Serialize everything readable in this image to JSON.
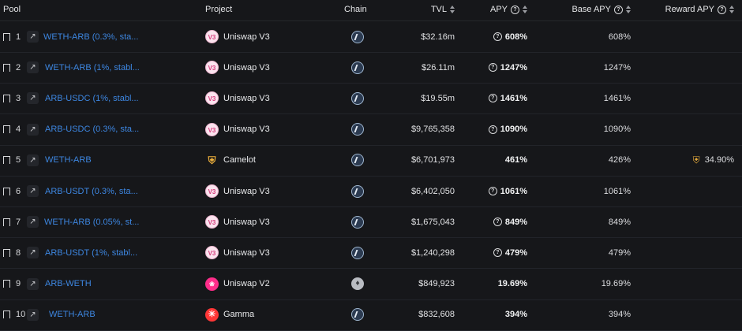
{
  "header": {
    "pool": "Pool",
    "project": "Project",
    "chain": "Chain",
    "tvl": "TVL",
    "apy": "APY",
    "base_apy": "Base APY",
    "reward_apy": "Reward APY"
  },
  "icons": {
    "bookmark": "bookmark-icon",
    "external": "external-link-icon",
    "question": "question-circle-icon",
    "sort": "sort-icon",
    "arbitrum": "arbitrum-chain-icon",
    "ethereum": "ethereum-chain-icon"
  },
  "colors": {
    "background": "#16171a",
    "link": "#3d86e0",
    "text": "#e8e9eb"
  },
  "rows": [
    {
      "rank": "1",
      "pool": "WETH-ARB (0.3%, sta...",
      "project": "Uniswap V3",
      "chain": "arbitrum",
      "tvl": "$32.16m",
      "apy": "608%",
      "apy_info": true,
      "base_apy": "608%",
      "reward_apy": ""
    },
    {
      "rank": "2",
      "pool": "WETH-ARB (1%, stabl...",
      "project": "Uniswap V3",
      "chain": "arbitrum",
      "tvl": "$26.11m",
      "apy": "1247%",
      "apy_info": true,
      "base_apy": "1247%",
      "reward_apy": ""
    },
    {
      "rank": "3",
      "pool": "ARB-USDC (1%, stabl...",
      "project": "Uniswap V3",
      "chain": "arbitrum",
      "tvl": "$19.55m",
      "apy": "1461%",
      "apy_info": true,
      "base_apy": "1461%",
      "reward_apy": ""
    },
    {
      "rank": "4",
      "pool": "ARB-USDC (0.3%, sta...",
      "project": "Uniswap V3",
      "chain": "arbitrum",
      "tvl": "$9,765,358",
      "apy": "1090%",
      "apy_info": true,
      "base_apy": "1090%",
      "reward_apy": ""
    },
    {
      "rank": "5",
      "pool": "WETH-ARB",
      "project": "Camelot",
      "chain": "arbitrum",
      "tvl": "$6,701,973",
      "apy": "461%",
      "apy_info": false,
      "base_apy": "426%",
      "reward_apy": "34.90%"
    },
    {
      "rank": "6",
      "pool": "ARB-USDT (0.3%, sta...",
      "project": "Uniswap V3",
      "chain": "arbitrum",
      "tvl": "$6,402,050",
      "apy": "1061%",
      "apy_info": true,
      "base_apy": "1061%",
      "reward_apy": ""
    },
    {
      "rank": "7",
      "pool": "WETH-ARB (0.05%, st...",
      "project": "Uniswap V3",
      "chain": "arbitrum",
      "tvl": "$1,675,043",
      "apy": "849%",
      "apy_info": true,
      "base_apy": "849%",
      "reward_apy": ""
    },
    {
      "rank": "8",
      "pool": "ARB-USDT (1%, stabl...",
      "project": "Uniswap V3",
      "chain": "arbitrum",
      "tvl": "$1,240,298",
      "apy": "479%",
      "apy_info": true,
      "base_apy": "479%",
      "reward_apy": ""
    },
    {
      "rank": "9",
      "pool": "ARB-WETH",
      "project": "Uniswap V2",
      "chain": "ethereum",
      "tvl": "$849,923",
      "apy": "19.69%",
      "apy_info": false,
      "base_apy": "19.69%",
      "reward_apy": ""
    },
    {
      "rank": "10",
      "pool": "WETH-ARB",
      "project": "Gamma",
      "chain": "arbitrum",
      "tvl": "$832,608",
      "apy": "394%",
      "apy_info": false,
      "base_apy": "394%",
      "reward_apy": ""
    }
  ]
}
